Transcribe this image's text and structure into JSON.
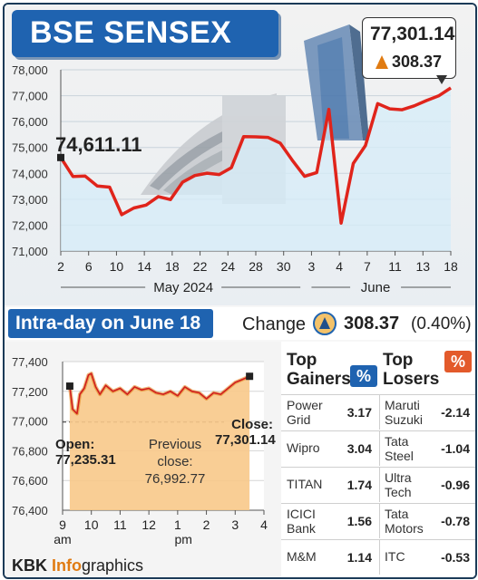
{
  "title": "BSE SENSEX",
  "main_chart": {
    "start_label": "74,611.11",
    "end_value": "77,301.14",
    "end_change": "308.37",
    "month_label_may": "May 2024",
    "month_label_june": "June"
  },
  "intraday_title": "Intra-day on June 18",
  "change": {
    "label": "Change",
    "value": "308.37",
    "percent": "(0.40%)"
  },
  "intraday": {
    "open_label": "Open:",
    "open_value": "77,235.31",
    "prev_label_1": "Previous",
    "prev_label_2": "close:",
    "prev_value": "76,992.77",
    "close_label": "Close:",
    "close_value": "77,301.14"
  },
  "table": {
    "gainers_head_1": "Top",
    "gainers_head_2": "Gainers",
    "losers_head_1": "Top",
    "losers_head_2": "Losers",
    "pct_symbol": "%",
    "gainers": [
      {
        "name1": "Power",
        "name2": "Grid",
        "value": "3.17"
      },
      {
        "name1": "Wipro",
        "name2": "",
        "value": "3.04"
      },
      {
        "name1": "TITAN",
        "name2": "",
        "value": "1.74"
      },
      {
        "name1": "ICICI",
        "name2": "Bank",
        "value": "1.56"
      },
      {
        "name1": "M&M",
        "name2": "",
        "value": "1.14"
      }
    ],
    "losers": [
      {
        "name1": "Maruti",
        "name2": "Suzuki",
        "value": "-2.14"
      },
      {
        "name1": "Tata",
        "name2": "Steel",
        "value": "-1.04"
      },
      {
        "name1": "Ultra",
        "name2": "Tech",
        "value": "-0.96"
      },
      {
        "name1": "Tata",
        "name2": "Motors",
        "value": "-0.78"
      },
      {
        "name1": "ITC",
        "name2": "",
        "value": "-0.53"
      }
    ]
  },
  "footer": {
    "brand": "KBK ",
    "info": "Info",
    "graphics": "graphics"
  },
  "colors": {
    "line": "#e0241b",
    "area": "#d6ecf8",
    "accent_blue": "#1f63b0",
    "orange": "#e07b12",
    "intraday_fill": "#f8c98a"
  },
  "chart_data": [
    {
      "type": "line",
      "title": "BSE SENSEX",
      "xlabel": "May 2024 / June",
      "ylabel": "",
      "ylim": [
        71000,
        78000
      ],
      "yticks": [
        "78,000",
        "77,000",
        "76,000",
        "75,000",
        "74,000",
        "73,000",
        "72,000",
        "71,000"
      ],
      "xticks": [
        "2",
        "6",
        "10",
        "14",
        "18",
        "22",
        "24",
        "28",
        "30",
        "3",
        "4",
        "7",
        "11",
        "13",
        "18"
      ],
      "x": [
        "2",
        "3",
        "6",
        "7",
        "8",
        "9",
        "10",
        "13",
        "14",
        "15",
        "16",
        "17",
        "18",
        "21",
        "22",
        "23",
        "24",
        "27",
        "28",
        "29",
        "30",
        "31",
        "3",
        "4",
        "5",
        "6",
        "7",
        "10",
        "11",
        "12",
        "13",
        "14",
        "18"
      ],
      "series": [
        {
          "values": [
            74611,
            73880,
            73895,
            73510,
            73466,
            72404,
            72664,
            72776,
            73104,
            72987,
            73664,
            73917,
            74005,
            73953,
            74221,
            75418,
            75410,
            75390,
            75170,
            74503,
            73885,
            74031,
            76469,
            72079,
            74382,
            75074,
            76693,
            76490,
            76456,
            76606,
            76811,
            76993,
            77301
          ]
        }
      ]
    },
    {
      "type": "line",
      "title": "Intra-day on June 18",
      "ylim": [
        76400,
        77400
      ],
      "yticks": [
        "77,400",
        "77,200",
        "77,000",
        "76,800",
        "76,600",
        "76,400"
      ],
      "xticks": [
        "9",
        "10",
        "11",
        "12",
        "1",
        "2",
        "3",
        "4"
      ],
      "xtick_sub": [
        "am",
        "pm"
      ],
      "x": [
        9.25,
        9.35,
        9.5,
        9.6,
        9.75,
        9.9,
        10.0,
        10.15,
        10.3,
        10.5,
        10.75,
        11.0,
        11.25,
        11.5,
        11.75,
        12.0,
        12.25,
        12.5,
        12.75,
        13.0,
        13.25,
        13.5,
        13.75,
        14.0,
        14.25,
        14.5,
        14.75,
        15.0,
        15.25,
        15.5
      ],
      "series": [
        {
          "values": [
            77235,
            77080,
            77050,
            77180,
            77220,
            77310,
            77320,
            77230,
            77180,
            77240,
            77200,
            77220,
            77180,
            77230,
            77210,
            77220,
            77190,
            77180,
            77200,
            77170,
            77230,
            77200,
            77190,
            77150,
            77190,
            77180,
            77220,
            77260,
            77280,
            77301
          ]
        }
      ],
      "reference_line": 76992.77
    }
  ]
}
